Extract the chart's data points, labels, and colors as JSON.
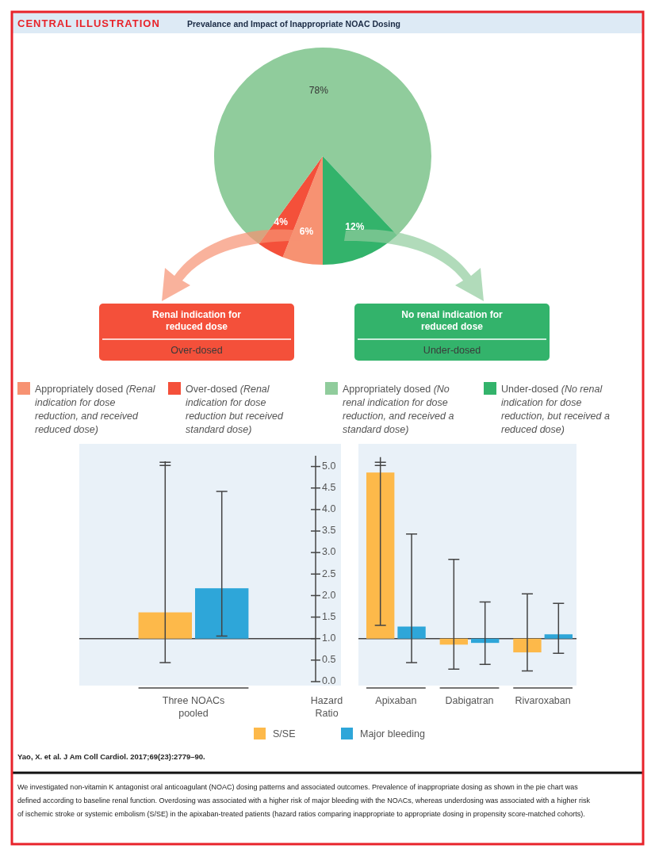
{
  "chart_data": [
    {
      "type": "pie",
      "title": "CENTRAL ILLUSTRATION",
      "subtitle": "Prevalance and Impact of Inappropriate NOAC Dosing",
      "categories": [
        "Appropriately dosed (Renal indication for dose reduction, and received reduced dose)",
        "Over-dosed (Renal indication for dose reduction but received standard dose)",
        "Appropriately dosed (No renal indication for dose reduction, and received a standard dose)",
        "Under-dosed (No renal indication for dose reduction, but received a reduced dose)"
      ],
      "values": [
        6,
        4,
        78,
        12
      ],
      "colors": [
        "#f79272",
        "#f4503a",
        "#90cc9c",
        "#33b36b"
      ],
      "value_labels": [
        "6%",
        "4%",
        "78%",
        "12%"
      ],
      "legend": "bottom",
      "annotations": [
        "Renal indication for reduced dose",
        "Over-dosed",
        "No renal indication for reduced dose",
        "Under-dosed",
        "Yao, X. et al. J Am Coll Cardiol. 2017;69(23):2779–90.",
        "We investigated non-vitamin K antagonist oral anticoagulant (NOAC) dosing patterns and associated outcomes. Prevalence of inappropriate dosing as shown in the pie chart was defined according to baseline renal function. Overdosing was associated with a higher risk of major bleeding with the NOACs, whereas underdosing was associated with a higher risk of ischemic stroke or systemic embolism (S/SE) in the apixaban-treated patients (hazard ratios comparing inappropriate to appropriate dosing in propensity score-matched cohorts)."
      ]
    },
    {
      "type": "bar",
      "categories": [
        "Three NOACs pooled"
      ],
      "ylabel": "Hazard Ratio",
      "ylim": [
        0,
        5.25
      ],
      "yticks": [
        {
          "value": 0,
          "label": "0.0"
        },
        0.5,
        {
          "value": 1,
          "label": "1.0"
        },
        1.5,
        {
          "value": 2,
          "label": "2.0"
        },
        2.5,
        {
          "value": 3,
          "label": "3.0"
        },
        3.5,
        {
          "value": 4,
          "label": "4.0"
        },
        4.5,
        {
          "value": 5,
          "label": "5.0"
        }
      ],
      "ref_lines": [
        {
          "axis": "y",
          "value": 1
        }
      ],
      "series": [
        {
          "color": "#fdb94a",
          "base": [
            1
          ],
          "values": [
            0.61
          ],
          "errors": [
            [
              0.44,
              5.12
            ]
          ]
        },
        {
          "color": "#2ea6d9",
          "base": [
            1
          ],
          "values": [
            1.17
          ],
          "errors": [
            [
              1.06,
              4.42
            ]
          ]
        }
      ]
    },
    {
      "type": "bar",
      "categories": [
        "Apixaban",
        "Dabigatran",
        "Rivaroxaban"
      ],
      "ylim": [
        0,
        5.25
      ],
      "tick_labels": "x",
      "ref_lines": [
        {
          "axis": "y",
          "value": 1
        }
      ],
      "legend": "bottom",
      "series": [
        {
          "name": "S/SE",
          "color": "#fdb94a",
          "base": [
            1,
            1,
            1
          ],
          "values": [
            3.86,
            -0.14,
            -0.32
          ],
          "errors": [
            [
              1.31,
              5.22
            ],
            [
              0.29,
              2.84
            ],
            [
              0.25,
              2.04
            ]
          ]
        },
        {
          "name": "Major bleeding",
          "color": "#2ea6d9",
          "base": [
            1,
            1,
            1
          ],
          "values": [
            0.28,
            -0.1,
            0.1
          ],
          "errors": [
            [
              0.44,
              3.43
            ],
            [
              0.4,
              1.85
            ],
            [
              0.66,
              1.82
            ]
          ]
        }
      ]
    }
  ]
}
